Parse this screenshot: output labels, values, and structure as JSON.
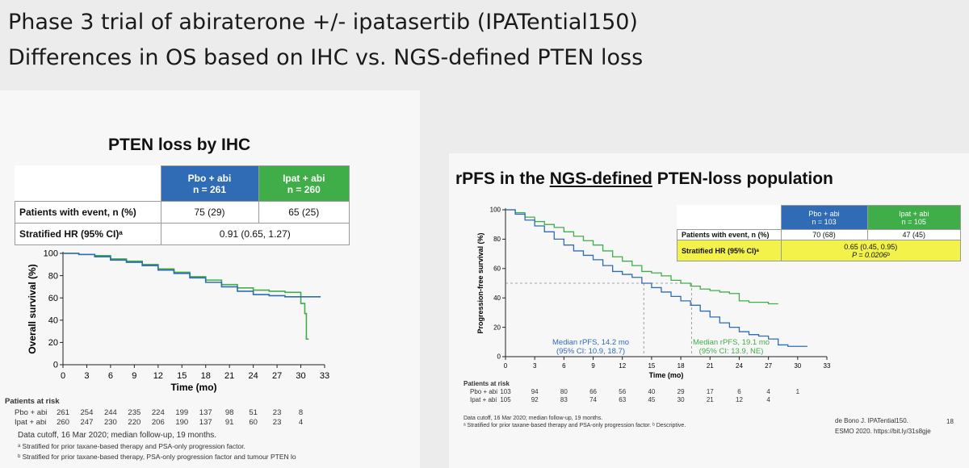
{
  "title_line1": "Phase 3 trial of abiraterone +/- ipatasertib (IPATential150)",
  "title_line2": "Differences in OS based on IHC vs. NGS-defined PTEN loss",
  "colors": {
    "pbo": "#2f6cb5",
    "ipat": "#3fae49",
    "highlight": "#f2f24a"
  },
  "left": {
    "heading": "PTEN loss by IHC",
    "table": {
      "col1_line1": "Pbo + abi",
      "col1_line2": "n = 261",
      "col2_line1": "Ipat + abi",
      "col2_line2": "n = 260",
      "row1_label": "Patients with event, n (%)",
      "row1_pbo": "75 (29)",
      "row1_ipat": "65 (25)",
      "row2_label": "Stratified HR (95% CI)ᵃ",
      "row2_value": "0.91 (0.65, 1.27)"
    },
    "risk_title": "Patients at risk",
    "risk_rows": [
      {
        "label": "Pbo + abi",
        "values": [
          "261",
          "254",
          "244",
          "235",
          "224",
          "199",
          "137",
          "98",
          "51",
          "23",
          "8"
        ]
      },
      {
        "label": "Ipat + abi",
        "values": [
          "260",
          "247",
          "230",
          "220",
          "206",
          "190",
          "137",
          "91",
          "60",
          "23",
          "4"
        ]
      }
    ],
    "footnote1": "Data cutoff, 16 Mar 2020; median follow-up, 19 months.",
    "footnote2": "ᵃ Stratified for prior taxane-based therapy and PSA-only progression factor.",
    "footnote3": "ᵇ Stratified for prior taxane-based therapy, PSA-only progression factor and tumour PTEN lo"
  },
  "right": {
    "heading_pre": "rPFS in the ",
    "heading_ul": "NGS-defined",
    "heading_post": " PTEN-loss population",
    "table": {
      "col1_line1": "Pbo + abi",
      "col1_line2": "n = 103",
      "col2_line1": "Ipat + abi",
      "col2_line2": "n = 105",
      "row1_label": "Patients with event, n (%)",
      "row1_pbo": "70 (68)",
      "row1_ipat": "47 (45)",
      "row2_label": "Stratified HR (95% CI)ᵃ",
      "row2_value": "0.65 (0.45, 0.95)",
      "row2_p": "P = 0.0206ᵇ"
    },
    "median_pbo_line1": "Median rPFS, 14.2 mo",
    "median_pbo_line2": "(95% CI: 10.9, 18.7)",
    "median_ipat_line1": "Median rPFS, 19.1 mo",
    "median_ipat_line2": "(95% CI: 13.9, NE)",
    "risk_title": "Patients at risk",
    "risk_rows": [
      {
        "label": "Pbo + abi",
        "values": [
          "103",
          "94",
          "80",
          "66",
          "56",
          "40",
          "29",
          "17",
          "6",
          "4",
          "1"
        ]
      },
      {
        "label": "Ipat + abi",
        "values": [
          "105",
          "92",
          "83",
          "74",
          "63",
          "45",
          "30",
          "21",
          "12",
          "4",
          ""
        ]
      }
    ],
    "footnote1": "Data cutoff, 16 Mar 2020; median follow-up, 19 months.",
    "footnote2": "ᵃ Stratified for prior taxane-based therapy and PSA-only progression factor. ᵇ Descriptive.",
    "citation1": "de Bono J. IPATential150.",
    "citation2": "ESMO 2020. https://bit.ly/31s8gje",
    "page_number": "18"
  },
  "chart_data": [
    {
      "type": "line",
      "title": "",
      "xlabel": "Time (mo)",
      "ylabel": "Overall survival (%)",
      "xlim": [
        0,
        33
      ],
      "ylim": [
        0,
        100
      ],
      "xticks": [
        0,
        3,
        6,
        9,
        12,
        15,
        18,
        21,
        24,
        27,
        30,
        33
      ],
      "yticks": [
        0,
        20,
        40,
        60,
        80,
        100
      ],
      "series": [
        {
          "name": "Pbo + abi",
          "x": [
            0,
            2,
            4,
            6,
            8,
            10,
            12,
            14,
            16,
            18,
            20,
            22,
            24,
            26,
            28,
            30,
            31,
            32.5
          ],
          "y": [
            100,
            99,
            97,
            94,
            92,
            89,
            85,
            82,
            78,
            74,
            70,
            66,
            63,
            62,
            61,
            61,
            61,
            61
          ]
        },
        {
          "name": "Ipat + abi",
          "x": [
            0,
            2,
            4,
            6,
            8,
            10,
            12,
            14,
            16,
            18,
            20,
            22,
            24,
            26,
            28,
            29.5,
            30,
            30.2,
            30.5,
            30.7,
            31
          ],
          "y": [
            100,
            99,
            98,
            95,
            93,
            90,
            86,
            83,
            79,
            76,
            72,
            69,
            67,
            66,
            65,
            65,
            55,
            55,
            46,
            23,
            23
          ]
        }
      ]
    },
    {
      "type": "line",
      "title": "",
      "xlabel": "Time (mo)",
      "ylabel": "Progression-free survival (%)",
      "xlim": [
        0,
        33
      ],
      "ylim": [
        0,
        100
      ],
      "xticks": [
        0,
        3,
        6,
        9,
        12,
        15,
        18,
        21,
        24,
        27,
        30,
        33
      ],
      "yticks": [
        0,
        20,
        40,
        60,
        80,
        100
      ],
      "medians": {
        "Pbo + abi": 14.2,
        "Ipat + abi": 19.1
      },
      "series": [
        {
          "name": "Pbo + abi",
          "x": [
            0,
            1,
            2,
            3,
            4,
            5,
            6,
            7,
            8,
            9,
            10,
            11,
            12,
            13,
            14,
            15,
            16,
            17,
            18,
            19,
            20,
            21,
            22,
            23,
            24,
            25,
            26,
            27,
            28,
            29,
            30,
            31
          ],
          "y": [
            100,
            97,
            93,
            89,
            85,
            80,
            76,
            72,
            69,
            66,
            62,
            58,
            56,
            54,
            50,
            47,
            44,
            41,
            38,
            35,
            31,
            27,
            23,
            20,
            17,
            15,
            14,
            12,
            8,
            7,
            7,
            7
          ]
        },
        {
          "name": "Ipat + abi",
          "x": [
            0,
            1,
            2,
            3,
            4,
            5,
            6,
            7,
            8,
            9,
            10,
            11,
            12,
            13,
            14,
            15,
            16,
            17,
            18,
            19,
            20,
            21,
            22,
            23,
            24,
            25,
            26,
            27,
            28
          ],
          "y": [
            100,
            98,
            95,
            92,
            90,
            88,
            85,
            82,
            79,
            76,
            72,
            68,
            65,
            62,
            58,
            57,
            55,
            52,
            50,
            48,
            46,
            45,
            44,
            43,
            38,
            37,
            37,
            36,
            36
          ]
        }
      ]
    }
  ]
}
